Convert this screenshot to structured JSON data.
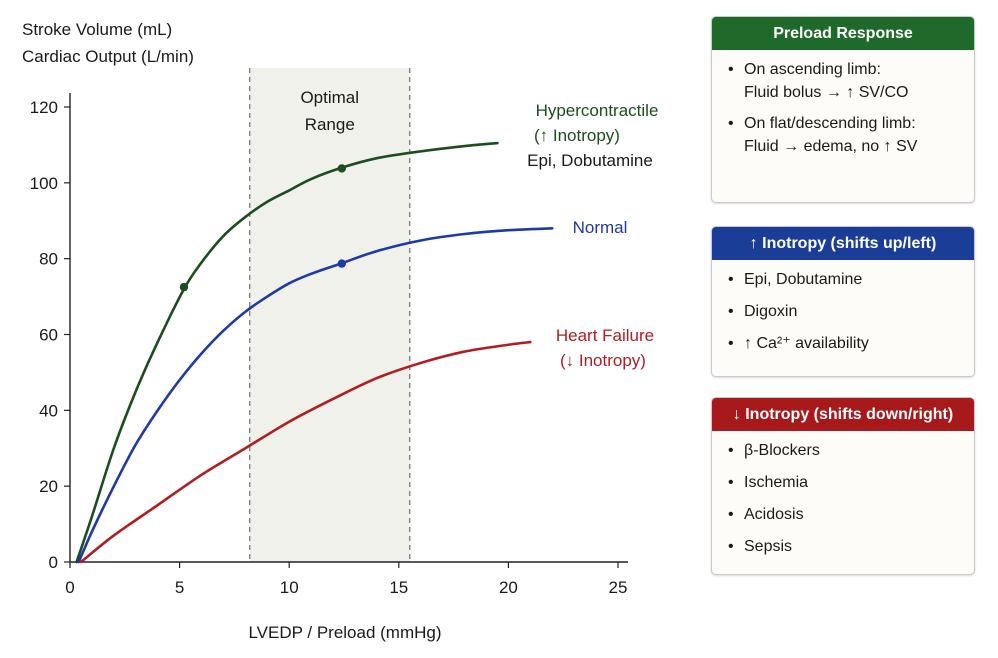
{
  "chart_data": {
    "type": "line",
    "ylabel_lines": [
      "Stroke Volume (mL)",
      "Cardiac Output (L/min)"
    ],
    "xlabel": "LVEDP / Preload (mmHg)",
    "xlim": [
      0,
      25
    ],
    "ylim": [
      0,
      120
    ],
    "xticks": [
      0,
      5,
      10,
      15,
      20,
      25
    ],
    "yticks": [
      0,
      20,
      40,
      60,
      80,
      100,
      120
    ],
    "optimal_range": {
      "x_start": 8.2,
      "x_end": 15.5,
      "label_lines": [
        "Optimal",
        "Range"
      ]
    },
    "series": [
      {
        "name": "Hypercontractile",
        "label_lines": [
          "Hypercontractile",
          "(↑ Inotropy)",
          "Epi, Dobutamine"
        ],
        "color": "#1b4d1f",
        "points": [
          [
            0.3,
            0
          ],
          [
            1,
            12
          ],
          [
            2,
            30
          ],
          [
            3,
            45
          ],
          [
            4,
            58
          ],
          [
            5.2,
            72
          ],
          [
            6,
            79
          ],
          [
            7,
            86
          ],
          [
            8,
            91
          ],
          [
            9,
            95
          ],
          [
            10,
            98
          ],
          [
            11,
            101
          ],
          [
            12.4,
            104
          ],
          [
            14,
            106.5
          ],
          [
            16,
            108.3
          ],
          [
            18,
            109.7
          ],
          [
            19.5,
            110.5
          ]
        ],
        "markers": [
          [
            5.2,
            72.5
          ],
          [
            12.4,
            103.8
          ]
        ]
      },
      {
        "name": "Normal",
        "label_lines": [
          "Normal"
        ],
        "color": "#1f3aa8",
        "points": [
          [
            0.4,
            0
          ],
          [
            1,
            8
          ],
          [
            2,
            20
          ],
          [
            3,
            31
          ],
          [
            4,
            40
          ],
          [
            5,
            48
          ],
          [
            6,
            55
          ],
          [
            7,
            61
          ],
          [
            8,
            66
          ],
          [
            9,
            70
          ],
          [
            10,
            73.5
          ],
          [
            11,
            76
          ],
          [
            12.4,
            78.8
          ],
          [
            14,
            82
          ],
          [
            16,
            84.8
          ],
          [
            18,
            86.5
          ],
          [
            20,
            87.5
          ],
          [
            22,
            88
          ]
        ],
        "markers": [
          [
            12.4,
            78.7
          ]
        ]
      },
      {
        "name": "Heart Failure",
        "label_lines": [
          "Heart Failure",
          "(↓ Inotropy)"
        ],
        "color": "#b01e22",
        "points": [
          [
            0.5,
            0
          ],
          [
            2,
            7
          ],
          [
            4,
            15
          ],
          [
            6,
            23
          ],
          [
            8,
            30
          ],
          [
            10,
            37
          ],
          [
            12,
            43
          ],
          [
            14,
            48.5
          ],
          [
            16,
            52.5
          ],
          [
            18,
            55.5
          ],
          [
            20,
            57.3
          ],
          [
            21,
            58
          ]
        ],
        "markers": []
      }
    ]
  },
  "panels": {
    "preload": {
      "title": "Preload Response",
      "color": "#1f6a2a",
      "items": [
        {
          "line1": "On ascending limb:",
          "line2": "Fluid bolus → ↑ SV/CO"
        },
        {
          "line1": "On flat/descending limb:",
          "line2": "Fluid → edema, no ↑ SV"
        }
      ]
    },
    "increase": {
      "title": "↑ Inotropy (shifts up/left)",
      "color": "#1a3e97",
      "items": [
        "Epi, Dobutamine",
        "Digoxin",
        "↑ Ca²⁺ availability"
      ]
    },
    "decrease": {
      "title": "↓ Inotropy (shifts down/right)",
      "color": "#a8191c",
      "items": [
        "β-Blockers",
        "Ischemia",
        "Acidosis",
        "Sepsis"
      ]
    }
  }
}
